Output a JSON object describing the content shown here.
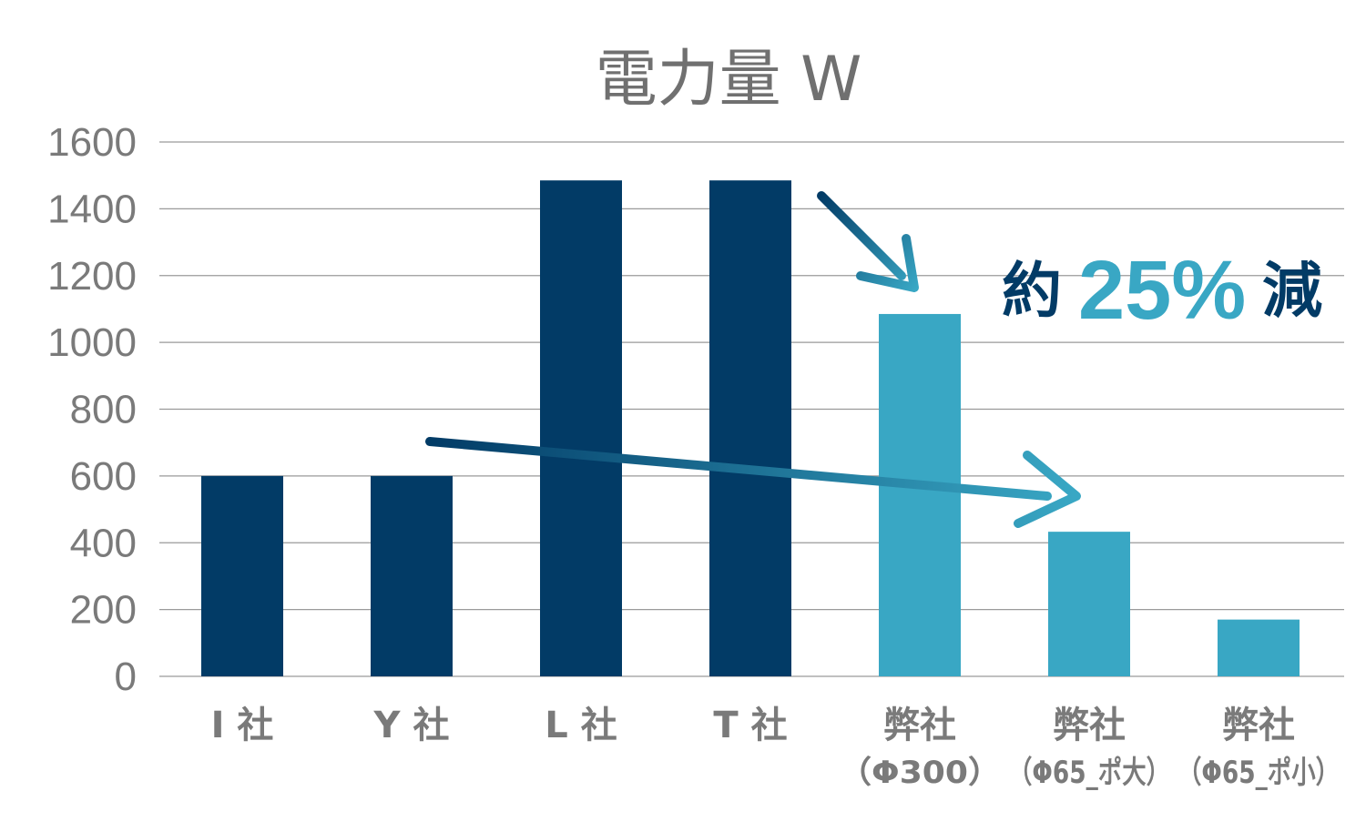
{
  "chart_data": {
    "type": "bar",
    "title": "電力量 W",
    "categories": [
      "I 社",
      "Y 社",
      "L 社",
      "T 社",
      "弊社",
      "弊社",
      "弊社"
    ],
    "category_sublabels": [
      "",
      "",
      "",
      "",
      "（Φ300）",
      "（Φ65_ポ大）",
      "（Φ65_ポ小）"
    ],
    "values": [
      600,
      600,
      1485,
      1485,
      1085,
      433,
      170
    ],
    "bar_colors": [
      "#023b66",
      "#023b66",
      "#023b66",
      "#023b66",
      "#39a7c4",
      "#39a7c4",
      "#39a7c4"
    ],
    "ylim": [
      0,
      1600
    ],
    "yticks": [
      "0",
      "200",
      "400",
      "600",
      "800",
      "1000",
      "1200",
      "1400",
      "1600"
    ],
    "grid": true,
    "xlabel": "",
    "ylabel": "",
    "annotation": {
      "prefix": "約",
      "value": "25%",
      "suffix": "減"
    },
    "colors": {
      "dark": "#023b66",
      "light": "#39a7c4",
      "grid": "#9a9a9a",
      "text": "#7a7a7a"
    }
  }
}
